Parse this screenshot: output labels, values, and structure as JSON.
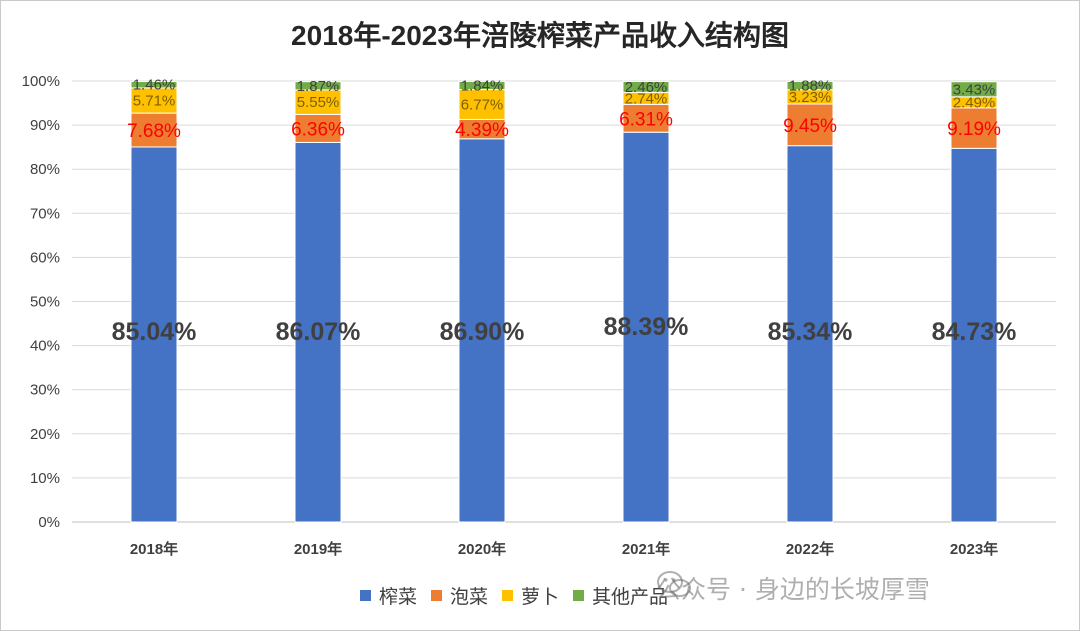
{
  "chart_data": {
    "type": "bar",
    "stacked": true,
    "title": "2018年-2023年涪陵榨菜产品收入结构图",
    "categories": [
      "2018年",
      "2019年",
      "2020年",
      "2021年",
      "2022年",
      "2023年"
    ],
    "series": [
      {
        "name": "榨菜",
        "color": "#4472C4",
        "values": [
          85.04,
          86.07,
          86.9,
          88.39,
          85.34,
          84.73
        ],
        "labels": [
          "85.04%",
          "86.07%",
          "86.90%",
          "88.39%",
          "85.34%",
          "84.73%"
        ],
        "label_color": "#404040"
      },
      {
        "name": "泡菜",
        "color": "#ED7D31",
        "values": [
          7.68,
          6.36,
          4.39,
          6.31,
          9.45,
          9.19
        ],
        "labels": [
          "7.68%",
          "6.36%",
          "4.39%",
          "6.31%",
          "9.45%",
          "9.19%"
        ],
        "label_color": "#FF0000"
      },
      {
        "name": "萝卜",
        "color": "#FFC000",
        "values": [
          5.71,
          5.55,
          6.77,
          2.74,
          3.23,
          2.49
        ],
        "labels": [
          "5.71%",
          "5.55%",
          "6.77%",
          "2.74%",
          "3.23%",
          "2.49%"
        ],
        "label_color": "#7F6000"
      },
      {
        "name": "其他产品",
        "color": "#70AD47",
        "values": [
          1.46,
          1.87,
          1.84,
          2.46,
          1.88,
          3.43
        ],
        "labels": [
          "1.46%",
          "1.87%",
          "1.84%",
          "2.46%",
          "1.88%",
          "3.43%"
        ],
        "label_color": "#404040"
      }
    ],
    "y_ticks": [
      "0%",
      "10%",
      "20%",
      "30%",
      "40%",
      "50%",
      "60%",
      "70%",
      "80%",
      "90%",
      "100%"
    ],
    "ylim": [
      0,
      100
    ],
    "grid": true,
    "legend_position": "bottom"
  },
  "watermark": {
    "text": "公众号 · 身边的长坡厚雪",
    "icon": "wechat-icon"
  }
}
